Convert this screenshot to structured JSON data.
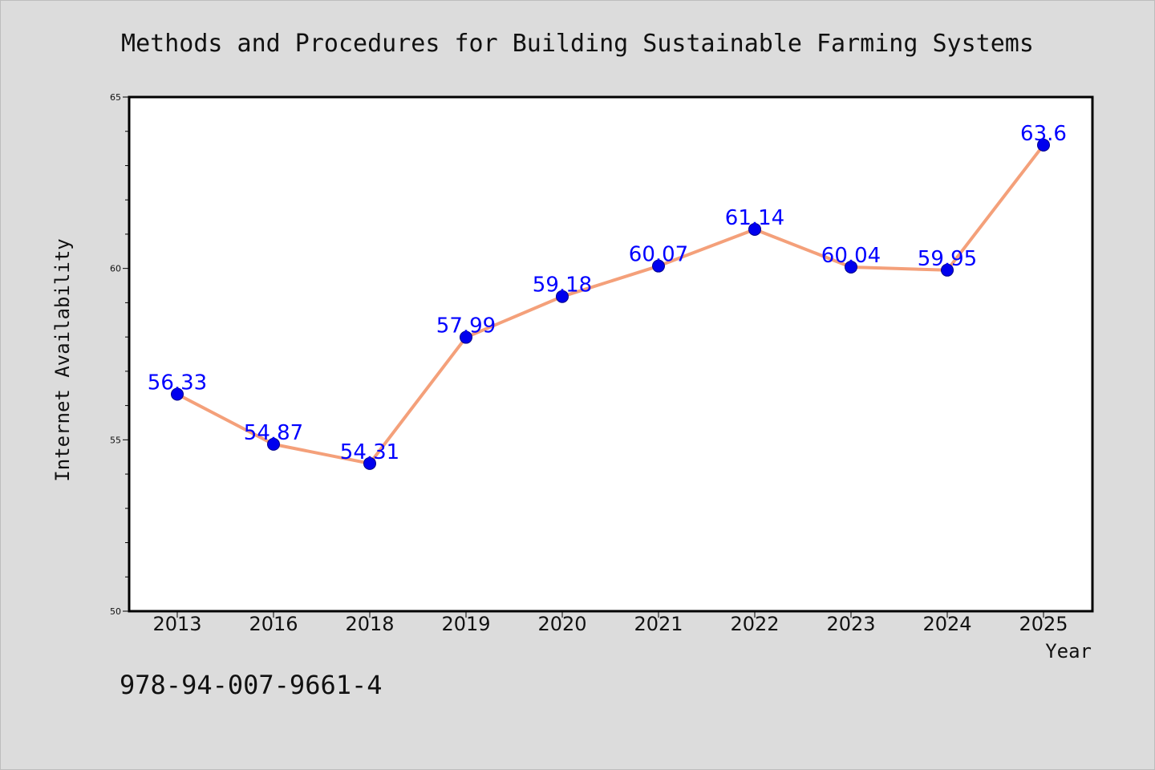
{
  "chart_data": {
    "type": "line",
    "title": "Methods and Procedures for Building Sustainable Farming Systems",
    "xlabel": "Year",
    "ylabel": "Internet Availability",
    "categories": [
      "2013",
      "2016",
      "2018",
      "2019",
      "2020",
      "2021",
      "2022",
      "2023",
      "2024",
      "2025"
    ],
    "series": [
      {
        "values": [
          56.33,
          54.87,
          54.31,
          57.99,
          59.18,
          60.07,
          61.14,
          60.04,
          59.95,
          63.6
        ],
        "data_labels": [
          "56.33",
          "54.87",
          "54.31",
          "57.99",
          "59.18",
          "60.07",
          "61.14",
          "60.04",
          "59.95",
          "63.6"
        ]
      }
    ],
    "ylim": [
      50,
      65
    ],
    "y_major_ticks": [
      50,
      55,
      60,
      65
    ],
    "y_minor_step": 1,
    "grid": false,
    "legend": "none",
    "colors": {
      "line": "#f4a07a",
      "marker": "#0000ee",
      "data_label": "#0000ff",
      "plot_background": "#ffffff",
      "page_background": "#dcdcdc"
    }
  },
  "footer": {
    "isbn": "978-94-007-9661-4"
  }
}
